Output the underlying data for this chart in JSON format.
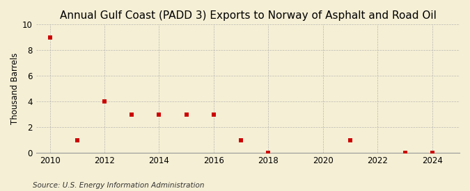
{
  "title": "Annual Gulf Coast (PADD 3) Exports to Norway of Asphalt and Road Oil",
  "ylabel": "Thousand Barrels",
  "source": "Source: U.S. Energy Information Administration",
  "background_color": "#f5efd5",
  "xlim": [
    2009.5,
    2025.0
  ],
  "ylim": [
    0,
    10
  ],
  "yticks": [
    0,
    2,
    4,
    6,
    8,
    10
  ],
  "xticks": [
    2010,
    2012,
    2014,
    2016,
    2018,
    2020,
    2022,
    2024
  ],
  "data_x": [
    2010,
    2011,
    2012,
    2013,
    2014,
    2015,
    2016,
    2017,
    2018,
    2021,
    2023,
    2024
  ],
  "data_y": [
    9,
    1,
    4,
    3,
    3,
    3,
    3,
    1,
    0,
    1,
    0,
    0
  ],
  "marker_color": "#cc0000",
  "marker_size": 18,
  "grid_color": "#aaaaaa",
  "title_fontsize": 11,
  "axis_fontsize": 8.5,
  "source_fontsize": 7.5
}
